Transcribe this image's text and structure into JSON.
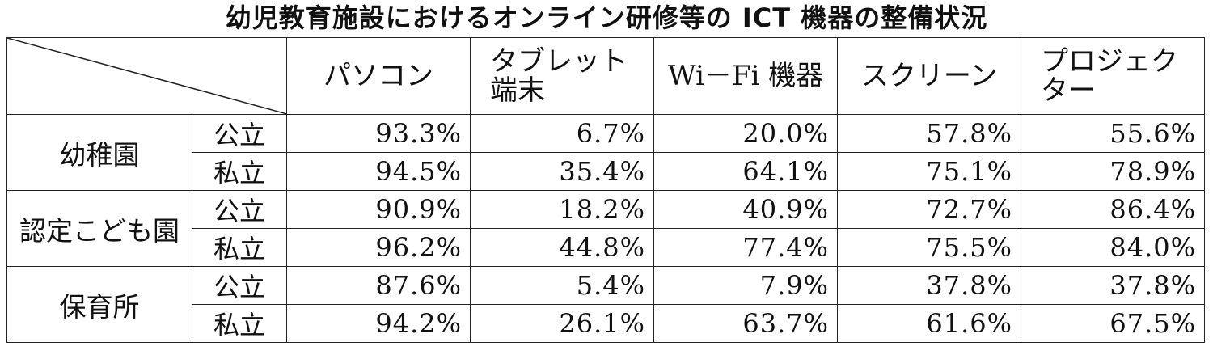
{
  "title": "幼児教育施設におけるオンライン研修等の ICT 機器の整備状況",
  "columns": [
    {
      "line1": "パソコン",
      "line2": ""
    },
    {
      "line1": "タブレット",
      "line2": "端末"
    },
    {
      "line1": "Wi－Fi 機器",
      "line2": ""
    },
    {
      "line1": "スクリーン",
      "line2": ""
    },
    {
      "line1": "プロジェク",
      "line2": "ター"
    }
  ],
  "groups": [
    {
      "name": "幼稚園",
      "rows": [
        {
          "type": "公立",
          "values": [
            "93.3%",
            "6.7%",
            "20.0%",
            "57.8%",
            "55.6%"
          ]
        },
        {
          "type": "私立",
          "values": [
            "94.5%",
            "35.4%",
            "64.1%",
            "75.1%",
            "78.9%"
          ]
        }
      ]
    },
    {
      "name": "認定こども園",
      "rows": [
        {
          "type": "公立",
          "values": [
            "90.9%",
            "18.2%",
            "40.9%",
            "72.7%",
            "86.4%"
          ]
        },
        {
          "type": "私立",
          "values": [
            "96.2%",
            "44.8%",
            "77.4%",
            "75.5%",
            "84.0%"
          ]
        }
      ]
    },
    {
      "name": "保育所",
      "rows": [
        {
          "type": "公立",
          "values": [
            "87.6%",
            "5.4%",
            "7.9%",
            "37.8%",
            "37.8%"
          ]
        },
        {
          "type": "私立",
          "values": [
            "94.2%",
            "26.1%",
            "63.7%",
            "61.6%",
            "67.5%"
          ]
        }
      ]
    }
  ]
}
